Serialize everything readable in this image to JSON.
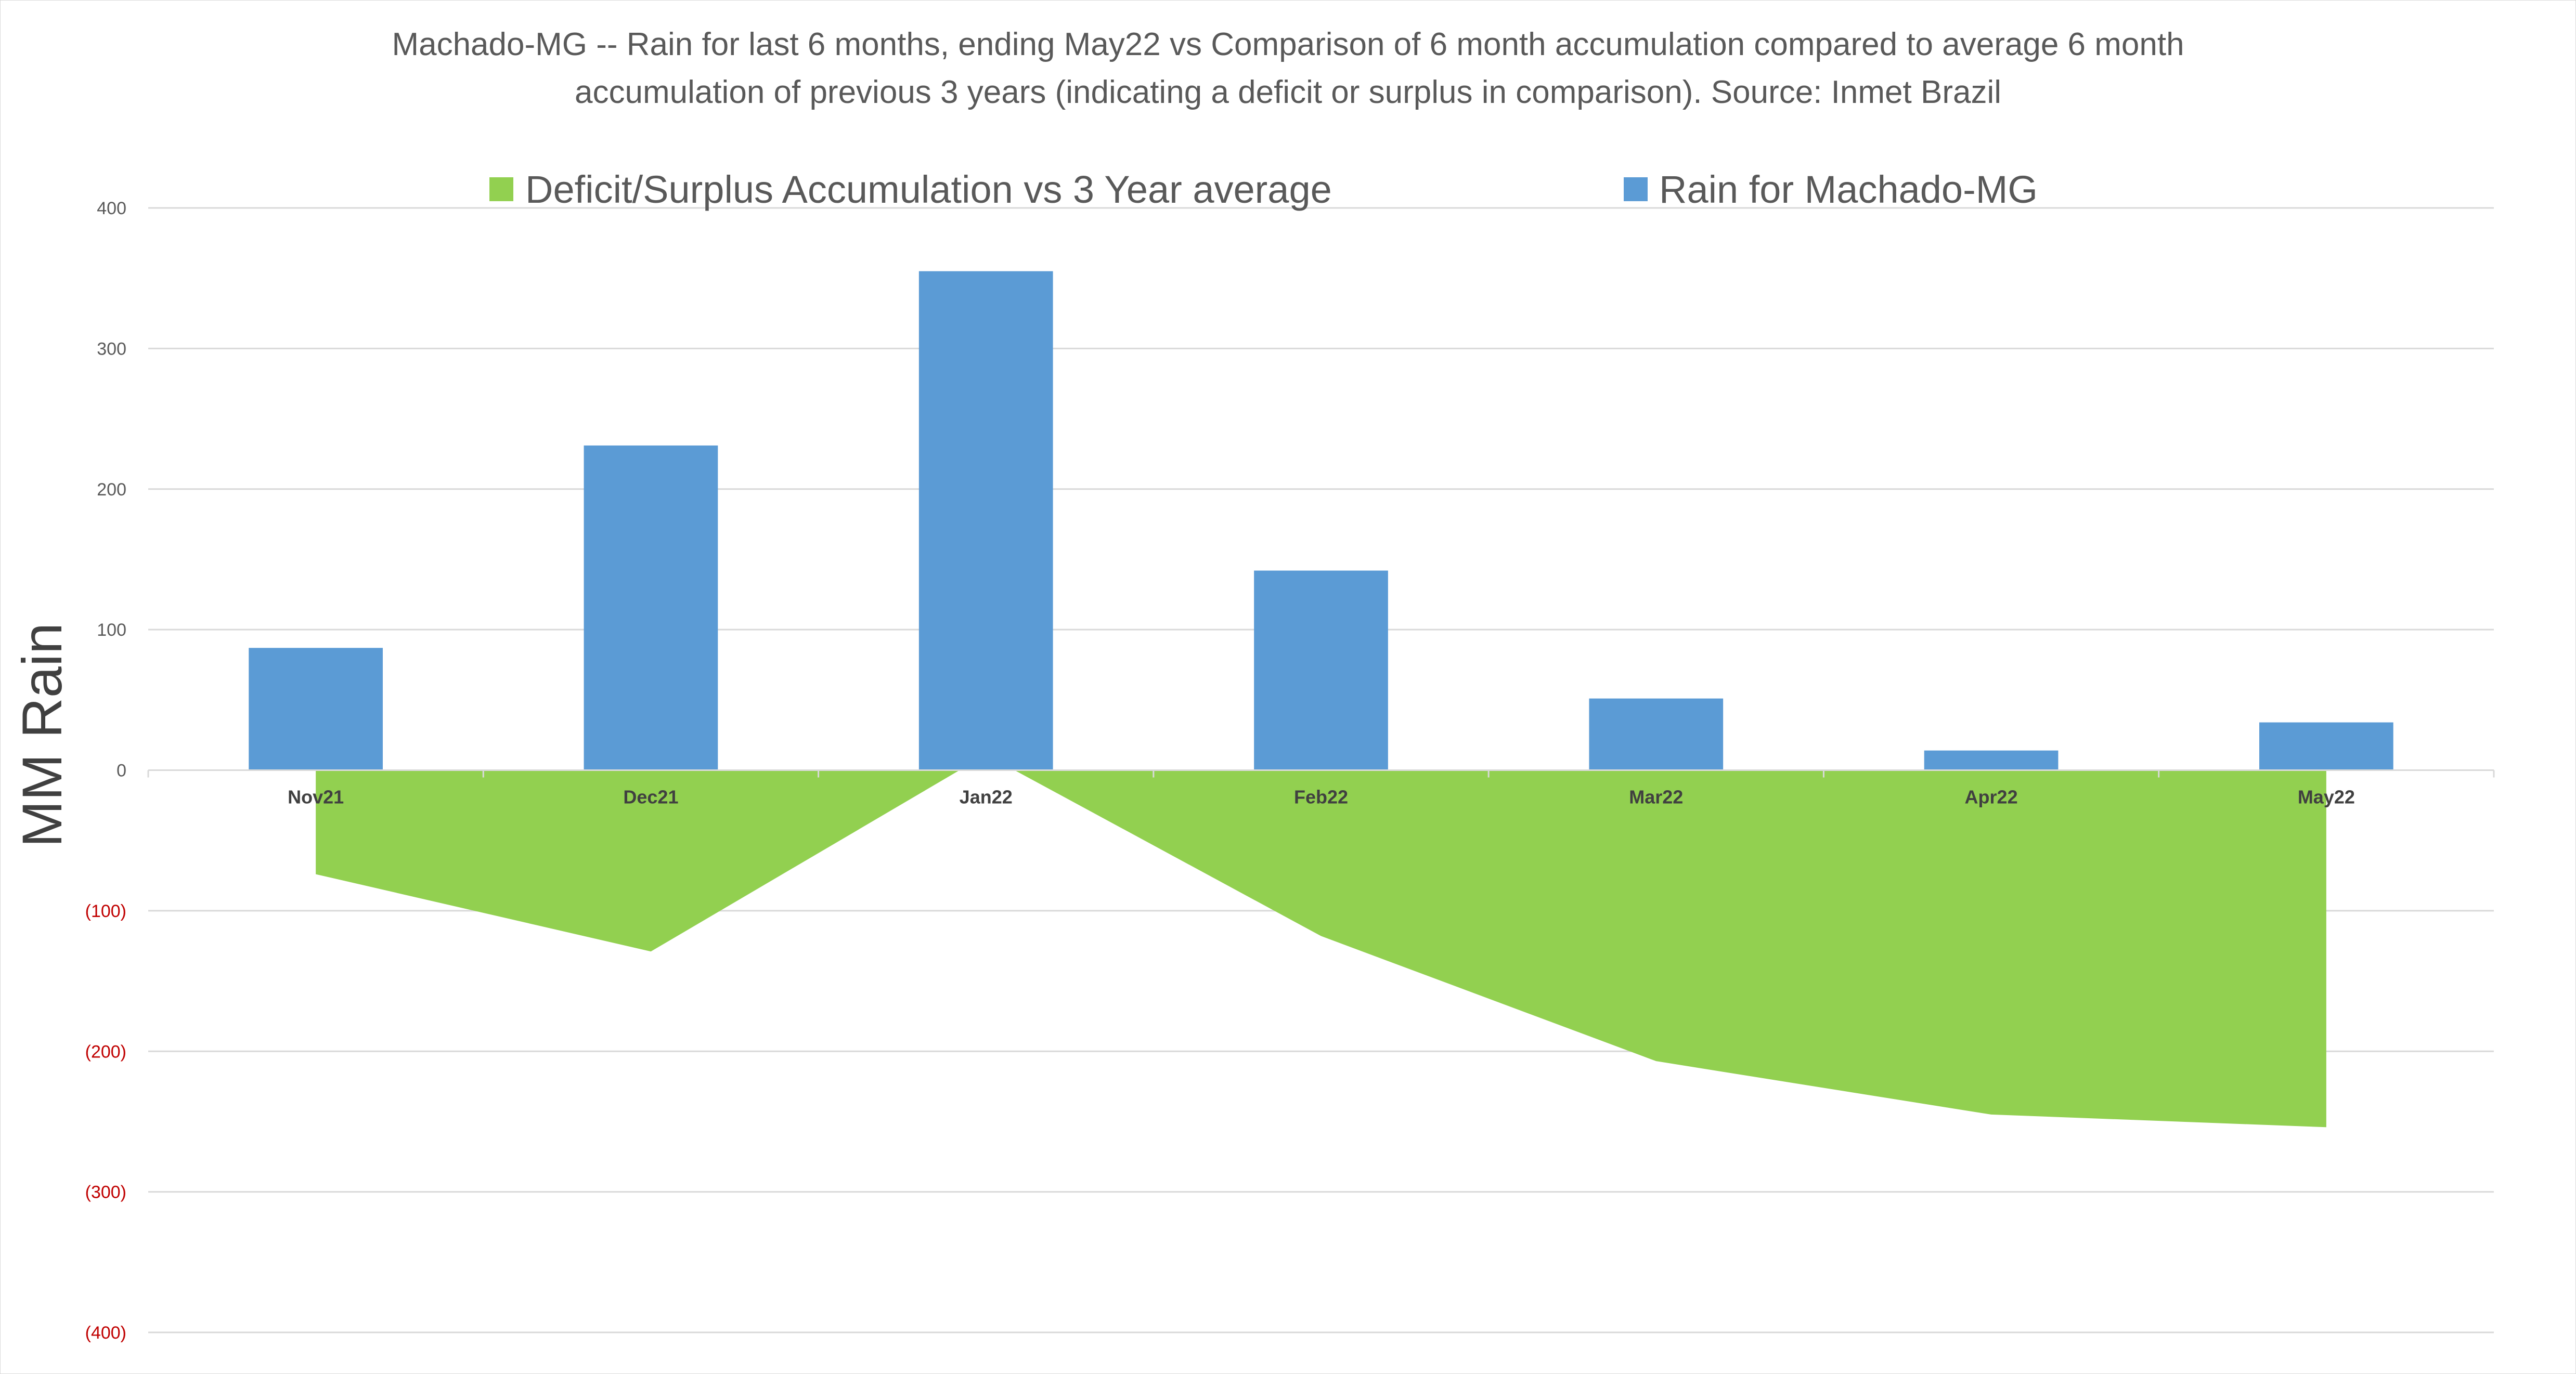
{
  "chart_data": {
    "type": "bar",
    "title_lines": [
      "Machado-MG -- Rain for last 6 months, ending May22  vs Comparison of 6 month accumulation compared to average 6 month",
      "accumulation of previous 3 years  (indicating a deficit or surplus in comparison). Source: Inmet Brazil"
    ],
    "ylabel": "MM Rain",
    "xlabel": "",
    "ylim": [
      -400,
      400
    ],
    "yticks": [
      400,
      300,
      200,
      100,
      0,
      -100,
      -200,
      -300,
      -400
    ],
    "ytick_labels": [
      "400",
      "300",
      "200",
      "100",
      "0",
      "(100)",
      "(200)",
      "(300)",
      "(400)"
    ],
    "grid": true,
    "legend_position": "top",
    "categories": [
      "Nov21",
      "Dec21",
      "Jan22",
      "Feb22",
      "Mar22",
      "Apr22",
      "May22"
    ],
    "series": [
      {
        "name": "Deficit/Surplus Accumulation vs 3 Year average",
        "type": "area",
        "color": "#92d050",
        "values": [
          -74,
          -129,
          11,
          -118,
          -207,
          -245,
          -254
        ]
      },
      {
        "name": "Rain for Machado-MG",
        "type": "bar",
        "color": "#5b9bd5",
        "values": [
          87,
          231,
          355,
          142,
          51,
          14,
          34
        ]
      }
    ]
  }
}
